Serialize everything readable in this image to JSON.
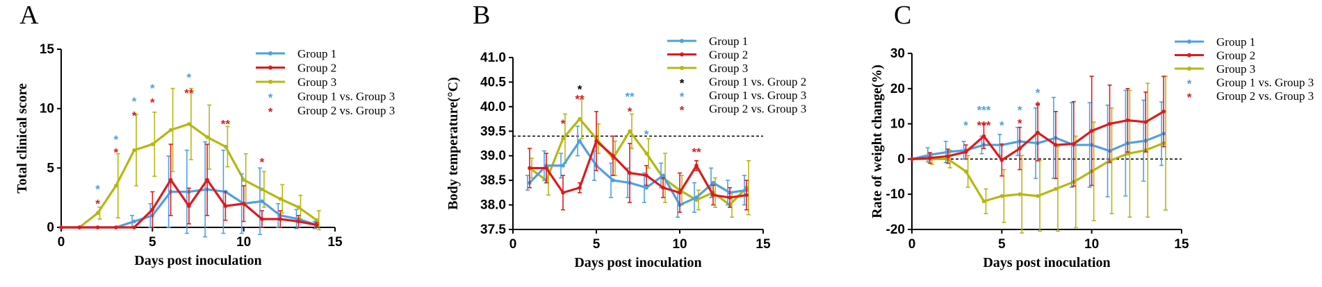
{
  "colors": {
    "group1": "#4e9fe3",
    "group2": "#dd1a1c",
    "group3": "#b5b711",
    "black": "#000000"
  },
  "chart_data": [
    {
      "panel": "A",
      "type": "line",
      "title": "",
      "xlabel": "Days post inoculation",
      "ylabel": "Total clinical score",
      "xlim": [
        0,
        15
      ],
      "ylim": [
        0,
        15
      ],
      "xticks": [
        0,
        5,
        10,
        15
      ],
      "yticks": [
        0,
        5,
        10,
        15
      ],
      "x": [
        0,
        1,
        2,
        3,
        4,
        5,
        6,
        7,
        8,
        9,
        10,
        11,
        12,
        13,
        14
      ],
      "series": [
        {
          "name": "Group 1",
          "color": "group1",
          "values": [
            0,
            0,
            0,
            0,
            0.5,
            1.0,
            3.0,
            3.0,
            3.2,
            3.0,
            2.0,
            2.2,
            1.0,
            0.7,
            0.2
          ],
          "errors": [
            0,
            0,
            0,
            0,
            0.5,
            1.0,
            3.0,
            3.5,
            4.0,
            3.5,
            2.5,
            2.8,
            1.0,
            0.8,
            0.3
          ]
        },
        {
          "name": "Group 2",
          "color": "group2",
          "values": [
            0,
            0,
            0,
            0,
            0,
            1.5,
            4.0,
            1.8,
            4.0,
            1.8,
            2.0,
            0.7,
            0.7,
            0.5,
            0.2
          ],
          "errors": [
            0,
            0,
            0,
            0,
            0,
            1.5,
            3.0,
            1.5,
            3.0,
            1.2,
            1.5,
            0.7,
            0.7,
            0.5,
            0.2
          ]
        },
        {
          "name": "Group 3",
          "color": "group3",
          "values": [
            0,
            0,
            1.2,
            3.5,
            6.5,
            7.0,
            8.2,
            8.7,
            7.6,
            6.8,
            4.0,
            3.2,
            2.4,
            1.7,
            0.6
          ],
          "errors": [
            0,
            0,
            0.5,
            2.7,
            3.0,
            2.7,
            3.5,
            3.0,
            2.7,
            1.7,
            2.2,
            1.5,
            1.2,
            1.0,
            0.8
          ]
        }
      ],
      "legend": [
        {
          "label": "Group 1",
          "kind": "line",
          "color": "group1"
        },
        {
          "label": "Group 2",
          "kind": "line",
          "color": "group2"
        },
        {
          "label": "Group 3",
          "kind": "line",
          "color": "group3"
        },
        {
          "label": "Group 1 vs. Group 3",
          "kind": "star",
          "color": "group1"
        },
        {
          "label": "Group 2 vs. Group 3",
          "kind": "star",
          "color": "group2"
        }
      ],
      "annotations": [
        {
          "x": 2,
          "y": 3.4,
          "text": "*",
          "color": "group1"
        },
        {
          "x": 2,
          "y": 2.2,
          "text": "*",
          "color": "group2"
        },
        {
          "x": 3,
          "y": 7.6,
          "text": "*",
          "color": "group1"
        },
        {
          "x": 3,
          "y": 6.5,
          "text": "*",
          "color": "group2"
        },
        {
          "x": 4,
          "y": 10.8,
          "text": "*",
          "color": "group1"
        },
        {
          "x": 4,
          "y": 9.6,
          "text": "*",
          "color": "group2"
        },
        {
          "x": 5,
          "y": 11.9,
          "text": "*",
          "color": "group1"
        },
        {
          "x": 5,
          "y": 10.7,
          "text": "*",
          "color": "group2"
        },
        {
          "x": 7,
          "y": 12.8,
          "text": "*",
          "color": "group1"
        },
        {
          "x": 7,
          "y": 11.5,
          "text": "**",
          "color": "group2"
        },
        {
          "x": 9,
          "y": 8.9,
          "text": "**",
          "color": "group2"
        },
        {
          "x": 11,
          "y": 5.7,
          "text": "*",
          "color": "group2"
        }
      ]
    },
    {
      "panel": "B",
      "type": "line",
      "title": "",
      "xlabel": "Days post inoculation",
      "ylabel": "Body temperature(°C)",
      "xlim": [
        0,
        15
      ],
      "ylim": [
        37.5,
        41.0
      ],
      "xticks": [
        0,
        5,
        10,
        15
      ],
      "yticks": [
        37.5,
        38.0,
        38.5,
        39.0,
        39.5,
        40.0,
        40.5,
        41.0
      ],
      "reference_line": 39.4,
      "x": [
        1,
        2,
        3,
        4,
        5,
        6,
        7,
        8,
        9,
        10,
        11,
        12,
        13,
        14
      ],
      "series": [
        {
          "name": "Group 1",
          "color": "group1",
          "values": [
            38.45,
            38.8,
            38.8,
            39.3,
            38.8,
            38.5,
            38.45,
            38.35,
            38.6,
            38.0,
            38.15,
            38.45,
            38.25,
            38.3
          ],
          "errors": [
            0.15,
            0.3,
            0.25,
            0.3,
            0.3,
            0.35,
            0.3,
            0.3,
            0.25,
            0.25,
            0.3,
            0.3,
            0.25,
            0.3
          ]
        },
        {
          "name": "Group 2",
          "color": "group2",
          "values": [
            38.75,
            38.75,
            38.25,
            38.35,
            39.3,
            39.0,
            38.65,
            38.6,
            38.35,
            38.25,
            38.8,
            38.2,
            38.15,
            38.2
          ],
          "errors": [
            0.4,
            0.3,
            0.35,
            0.1,
            0.6,
            0.4,
            0.6,
            0.2,
            0.2,
            0.4,
            0.1,
            0.2,
            0.2,
            0.3
          ]
        },
        {
          "name": "Group 3",
          "color": "group3",
          "values": [
            38.75,
            38.5,
            39.35,
            39.75,
            39.35,
            38.95,
            39.5,
            39.05,
            38.55,
            38.3,
            38.1,
            38.25,
            38.0,
            38.35
          ],
          "errors": [
            0.2,
            0.3,
            0.5,
            0.4,
            0.3,
            0.35,
            0.35,
            0.3,
            0.5,
            0.3,
            0.2,
            0.3,
            0.25,
            0.55
          ]
        }
      ],
      "legend": [
        {
          "label": "Group 1",
          "kind": "line",
          "color": "group1"
        },
        {
          "label": "Group 2",
          "kind": "line",
          "color": "group2"
        },
        {
          "label": "Group 3",
          "kind": "line",
          "color": "group3"
        },
        {
          "label": "Group 1 vs. Group 2",
          "kind": "star",
          "color": "black"
        },
        {
          "label": "Group 1 vs. Group 3",
          "kind": "star",
          "color": "group1"
        },
        {
          "label": "Group 2 vs. Group 3",
          "kind": "star",
          "color": "group2"
        }
      ],
      "annotations": [
        {
          "x": 3,
          "y": 39.7,
          "text": "*",
          "color": "group2"
        },
        {
          "x": 4,
          "y": 40.4,
          "text": "*",
          "color": "black"
        },
        {
          "x": 4,
          "y": 40.2,
          "text": "**",
          "color": "group2"
        },
        {
          "x": 7,
          "y": 40.25,
          "text": "**",
          "color": "group1"
        },
        {
          "x": 7,
          "y": 39.95,
          "text": "*",
          "color": "group2"
        },
        {
          "x": 8,
          "y": 39.48,
          "text": "*",
          "color": "group1"
        },
        {
          "x": 11,
          "y": 39.12,
          "text": "**",
          "color": "group2"
        }
      ]
    },
    {
      "panel": "C",
      "type": "line",
      "title": "",
      "xlabel": "Days post inoculation",
      "ylabel": "Rate of weight change(%)",
      "xlim": [
        0,
        15
      ],
      "ylim": [
        -20,
        30
      ],
      "xticks": [
        0,
        5,
        10,
        15
      ],
      "yticks": [
        -20,
        -10,
        0,
        10,
        20,
        30
      ],
      "reference_line": 0,
      "x": [
        0,
        1,
        2,
        3,
        4,
        5,
        6,
        7,
        8,
        9,
        10,
        11,
        12,
        13,
        14
      ],
      "series": [
        {
          "name": "Group 1",
          "color": "group1",
          "values": [
            0,
            1.2,
            2.0,
            2.5,
            4.0,
            4.0,
            5.0,
            4.5,
            6.0,
            4.0,
            4.0,
            2.3,
            4.5,
            5.2,
            7.2
          ],
          "errors": [
            0,
            2.0,
            3.0,
            2.5,
            2.5,
            3.0,
            4.0,
            10.0,
            11.5,
            12.0,
            12.0,
            13.0,
            15.0,
            11.5,
            9.0
          ]
        },
        {
          "name": "Group 2",
          "color": "group2",
          "values": [
            0,
            0.3,
            0.8,
            2.0,
            6.5,
            -0.3,
            3.0,
            7.5,
            4.0,
            4.3,
            8.0,
            10.0,
            11.0,
            10.5,
            13.5
          ],
          "errors": [
            0,
            1.5,
            2.0,
            2.0,
            3.5,
            4.5,
            6.0,
            8.0,
            9.5,
            12.0,
            15.5,
            11.0,
            9.0,
            8.5,
            10.0
          ]
        },
        {
          "name": "Group 3",
          "color": "group3",
          "values": [
            0,
            0,
            0,
            -3.5,
            -12.0,
            -10.5,
            -10.0,
            -10.5,
            -8.5,
            -6.5,
            -3.5,
            -0.5,
            1.5,
            2.5,
            4.5
          ],
          "errors": [
            0,
            1.5,
            2.5,
            4.5,
            3.5,
            7.5,
            11.0,
            10.0,
            12.0,
            13.0,
            14.0,
            15.0,
            18.0,
            19.0,
            19.0
          ]
        }
      ],
      "legend": [
        {
          "label": "Group 1",
          "kind": "line",
          "color": "group1"
        },
        {
          "label": "Group 2",
          "kind": "line",
          "color": "group2"
        },
        {
          "label": "Group 3",
          "kind": "line",
          "color": "group3"
        },
        {
          "label": "Group 1 vs. Group 3",
          "kind": "star",
          "color": "group1"
        },
        {
          "label": "Group 2 vs. Group 3",
          "kind": "star",
          "color": "group2"
        }
      ],
      "annotations": [
        {
          "x": 3,
          "y": 10.2,
          "text": "*",
          "color": "group1"
        },
        {
          "x": 4,
          "y": 14.5,
          "text": "***",
          "color": "group1"
        },
        {
          "x": 4,
          "y": 10.2,
          "text": "***",
          "color": "group2"
        },
        {
          "x": 5,
          "y": 10.2,
          "text": "*",
          "color": "group1"
        },
        {
          "x": 6,
          "y": 14.5,
          "text": "*",
          "color": "group1"
        },
        {
          "x": 6,
          "y": 10.8,
          "text": "*",
          "color": "group2"
        },
        {
          "x": 7,
          "y": 19.5,
          "text": "*",
          "color": "group1"
        },
        {
          "x": 7,
          "y": 15.8,
          "text": "*",
          "color": "group2"
        }
      ]
    }
  ]
}
